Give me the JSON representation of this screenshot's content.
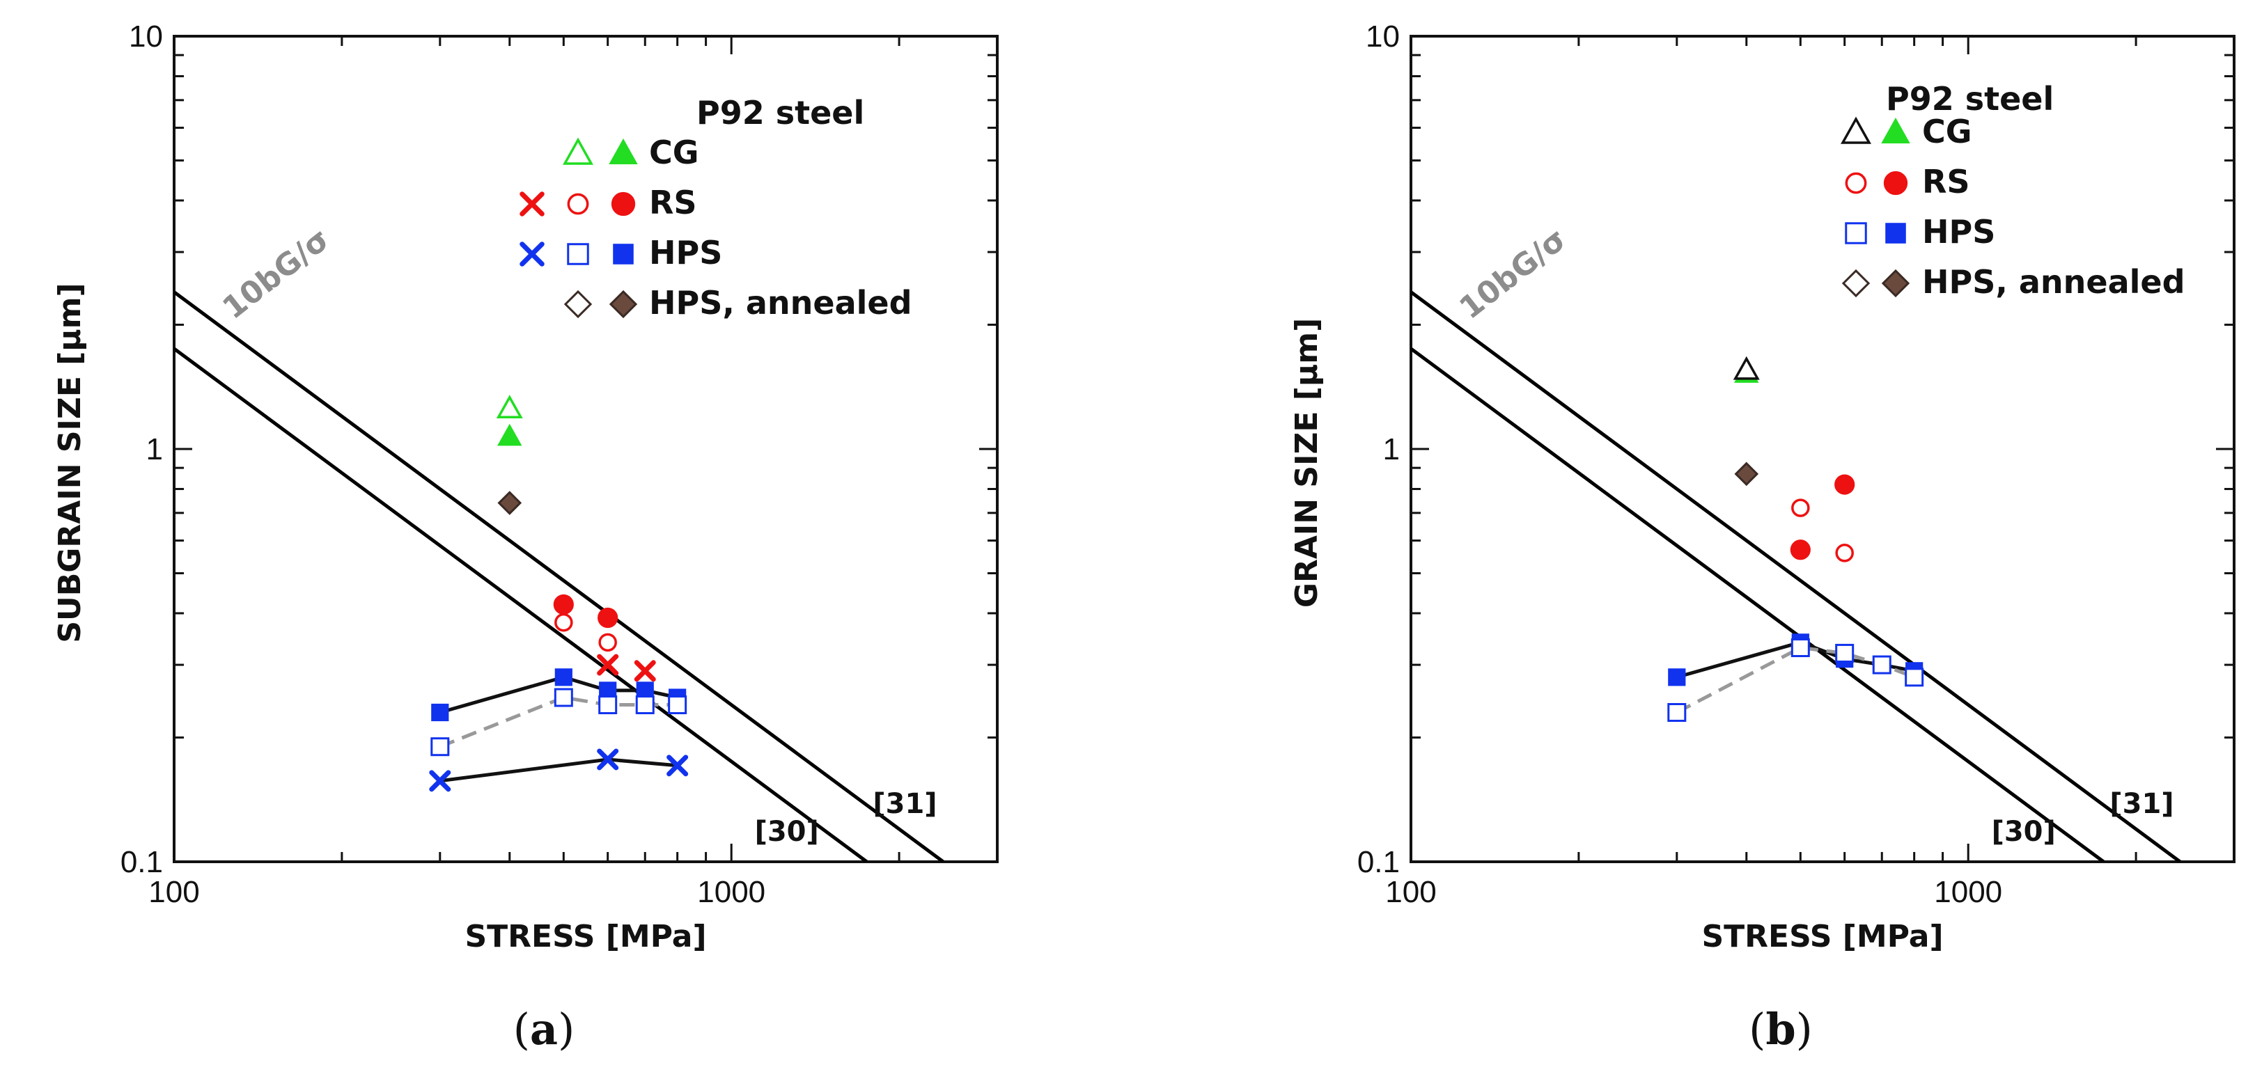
{
  "chart_data": [
    {
      "type": "scatter",
      "panel_label_open": "(",
      "panel_label_letter": "a",
      "panel_label_close": ")",
      "xlabel": "STRESS [MPa]",
      "ylabel": "SUBGRAIN SIZE [μm]",
      "x_scale": "log",
      "y_scale": "log",
      "xlim": [
        100,
        3000
      ],
      "ylim": [
        0.1,
        10
      ],
      "x_ticks": [
        {
          "value": 100,
          "label": "100"
        },
        {
          "value": 1000,
          "label": "1000"
        }
      ],
      "y_ticks": [
        {
          "value": 0.1,
          "label": "0.1"
        },
        {
          "value": 1,
          "label": "1"
        },
        {
          "value": 10,
          "label": "10"
        }
      ],
      "grid": false,
      "legend_position": "top-right",
      "legend_title": "P92 steel",
      "legend": [
        {
          "label": "CG",
          "markers": [
            "triangle-open-green",
            "triangle-filled-green"
          ]
        },
        {
          "label": "RS",
          "markers": [
            "x-red",
            "circle-open-red",
            "circle-filled-red"
          ]
        },
        {
          "label": "HPS",
          "markers": [
            "x-blue",
            "square-open-blue",
            "square-filled-blue"
          ]
        },
        {
          "label": "HPS, annealed",
          "markers": [
            "diamond-open-dark",
            "diamond-filled-brown"
          ]
        }
      ],
      "reference_lines": [
        {
          "label": "[31]",
          "points": [
            [
              100,
              2.4
            ],
            [
              2400,
              0.1
            ]
          ],
          "color": "#000000"
        },
        {
          "label": "[30]",
          "points": [
            [
              100,
              1.75
            ],
            [
              1750,
              0.1
            ]
          ],
          "color": "#000000"
        }
      ],
      "slope_label": "10bG/σ",
      "series": [
        {
          "marker": "triangle-open-green",
          "color": "#22dd22",
          "points": [
            [
              400,
              1.25
            ]
          ]
        },
        {
          "marker": "triangle-filled-green",
          "color": "#22dd22",
          "points": [
            [
              400,
              1.07
            ]
          ]
        },
        {
          "marker": "diamond-filled-brown",
          "color": "#6b4a3e",
          "points": [
            [
              400,
              0.74
            ]
          ]
        },
        {
          "marker": "circle-filled-red",
          "color": "#ee1111",
          "points": [
            [
              500,
              0.42
            ],
            [
              600,
              0.39
            ]
          ]
        },
        {
          "marker": "circle-open-red",
          "color": "#ee1111",
          "points": [
            [
              500,
              0.38
            ],
            [
              600,
              0.34
            ]
          ]
        },
        {
          "marker": "x-red",
          "color": "#ee1111",
          "points": [
            [
              600,
              0.3
            ],
            [
              700,
              0.29
            ]
          ]
        },
        {
          "marker": "square-filled-blue",
          "color": "#1133ee",
          "line": "solid",
          "line_color": "#111111",
          "points": [
            [
              300,
              0.23
            ],
            [
              500,
              0.28
            ],
            [
              600,
              0.26
            ],
            [
              700,
              0.26
            ],
            [
              800,
              0.25
            ]
          ]
        },
        {
          "marker": "square-open-blue",
          "color": "#1133ee",
          "line": "dashed",
          "line_color": "#999999",
          "points": [
            [
              300,
              0.19
            ],
            [
              500,
              0.25
            ],
            [
              600,
              0.24
            ],
            [
              700,
              0.24
            ],
            [
              800,
              0.24
            ]
          ]
        },
        {
          "marker": "x-blue",
          "color": "#1133ee",
          "line": "solid",
          "line_color": "#111111",
          "points": [
            [
              300,
              0.157
            ],
            [
              600,
              0.177
            ],
            [
              800,
              0.171
            ]
          ]
        }
      ]
    },
    {
      "type": "scatter",
      "panel_label_open": "(",
      "panel_label_letter": "b",
      "panel_label_close": ")",
      "xlabel": "STRESS [MPa]",
      "ylabel": "GRAIN SIZE [μm]",
      "x_scale": "log",
      "y_scale": "log",
      "xlim": [
        100,
        3000
      ],
      "ylim": [
        0.1,
        10
      ],
      "x_ticks": [
        {
          "value": 100,
          "label": "100"
        },
        {
          "value": 1000,
          "label": "1000"
        }
      ],
      "y_ticks": [
        {
          "value": 0.1,
          "label": "0.1"
        },
        {
          "value": 1,
          "label": "1"
        },
        {
          "value": 10,
          "label": "10"
        }
      ],
      "grid": false,
      "legend_position": "top-right",
      "legend_title": "P92 steel",
      "legend": [
        {
          "label": "CG",
          "markers": [
            "triangle-open-black",
            "triangle-filled-green"
          ]
        },
        {
          "label": "RS",
          "markers": [
            "circle-open-red",
            "circle-filled-red"
          ]
        },
        {
          "label": "HPS",
          "markers": [
            "square-open-blue",
            "square-filled-blue"
          ]
        },
        {
          "label": "HPS, annealed",
          "markers": [
            "diamond-open-dark",
            "diamond-filled-brown"
          ]
        }
      ],
      "reference_lines": [
        {
          "label": "[31]",
          "points": [
            [
              100,
              2.4
            ],
            [
              2400,
              0.1
            ]
          ],
          "color": "#000000"
        },
        {
          "label": "[30]",
          "points": [
            [
              100,
              1.75
            ],
            [
              1750,
              0.1
            ]
          ],
          "color": "#000000"
        }
      ],
      "slope_label": "10bG/σ",
      "series": [
        {
          "marker": "triangle-filled-green",
          "color": "#22dd22",
          "points": [
            [
              400,
              1.52
            ]
          ]
        },
        {
          "marker": "triangle-open-black",
          "color": "#111111",
          "points": [
            [
              400,
              1.55
            ]
          ]
        },
        {
          "marker": "diamond-filled-brown",
          "color": "#6b4a3e",
          "points": [
            [
              400,
              0.87
            ]
          ]
        },
        {
          "marker": "circle-filled-red",
          "color": "#ee1111",
          "points": [
            [
              500,
              0.57
            ],
            [
              600,
              0.82
            ]
          ]
        },
        {
          "marker": "circle-open-red",
          "color": "#ee1111",
          "points": [
            [
              500,
              0.72
            ],
            [
              600,
              0.56
            ]
          ]
        },
        {
          "marker": "square-filled-blue",
          "color": "#1133ee",
          "line": "solid",
          "line_color": "#111111",
          "points": [
            [
              300,
              0.28
            ],
            [
              500,
              0.34
            ],
            [
              600,
              0.31
            ],
            [
              700,
              0.3
            ],
            [
              800,
              0.29
            ]
          ]
        },
        {
          "marker": "square-open-blue",
          "color": "#1133ee",
          "line": "dashed",
          "line_color": "#999999",
          "points": [
            [
              300,
              0.23
            ],
            [
              500,
              0.33
            ],
            [
              600,
              0.32
            ],
            [
              700,
              0.3
            ],
            [
              800,
              0.28
            ]
          ]
        }
      ]
    }
  ]
}
